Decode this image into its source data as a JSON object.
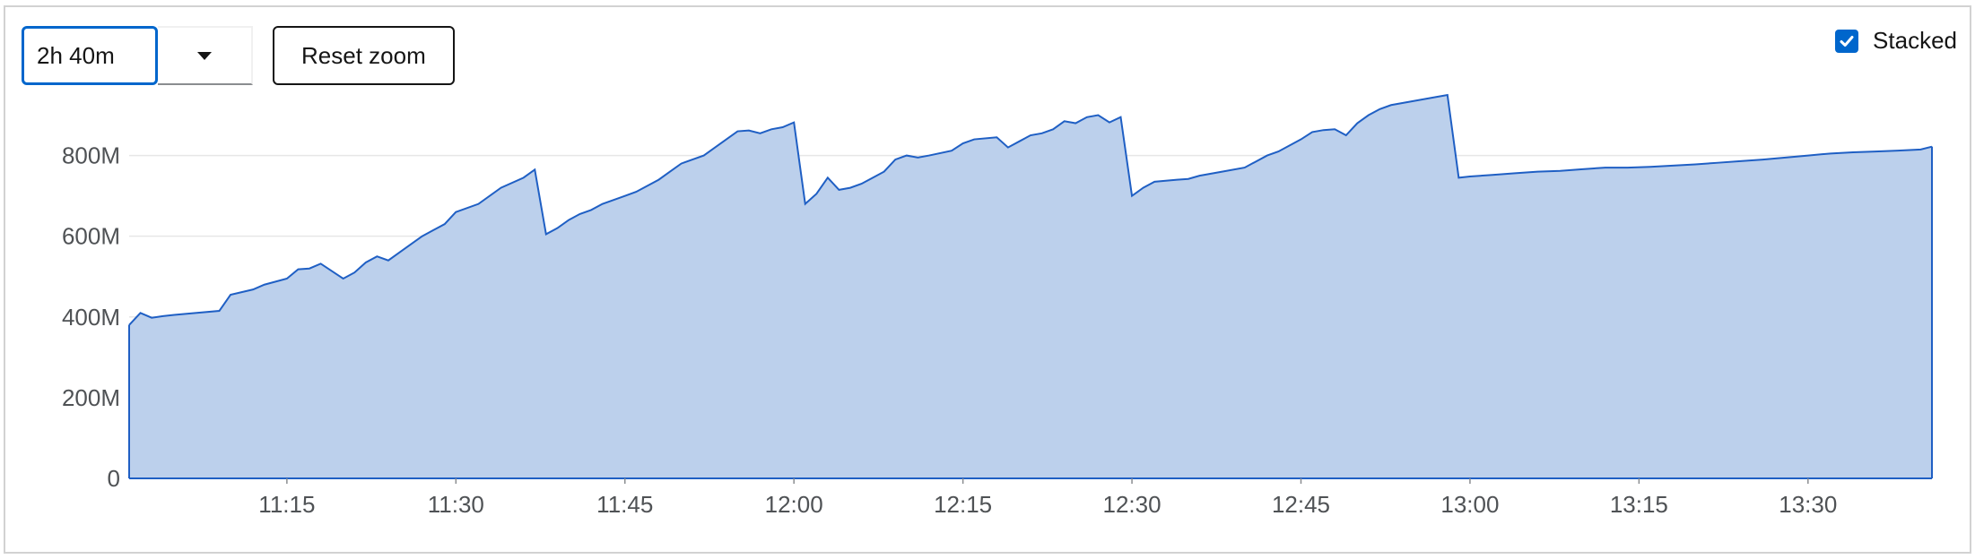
{
  "controls": {
    "duration_value": "2h 40m",
    "reset_label": "Reset zoom",
    "stacked_label": "Stacked",
    "stacked_checked": true,
    "dropdown_icon": "caret-down-icon",
    "check_icon": "checkmark-icon"
  },
  "colors": {
    "area_fill": "#bcd0ec",
    "area_stroke": "#1f5fc4",
    "accent": "#0066cc",
    "grid": "#e6e6e6",
    "axis_text": "#4f5255"
  },
  "chart_data": {
    "type": "area",
    "stacked": true,
    "title": "",
    "xlabel": "",
    "ylabel": "",
    "ylim": [
      0,
      950000000
    ],
    "xlim": [
      "11:01",
      "13:41"
    ],
    "grid": true,
    "yticks": [
      {
        "value": 0,
        "label": "0"
      },
      {
        "value": 200000000,
        "label": "200M"
      },
      {
        "value": 400000000,
        "label": "400M"
      },
      {
        "value": 600000000,
        "label": "600M"
      },
      {
        "value": 800000000,
        "label": "800M"
      }
    ],
    "xticks": [
      "11:15",
      "11:30",
      "11:45",
      "12:00",
      "12:15",
      "12:30",
      "12:45",
      "13:00",
      "13:15",
      "13:30"
    ],
    "series": [
      {
        "x": [
          "11:01",
          "11:02",
          "11:03",
          "11:04",
          "11:05",
          "11:07",
          "11:09",
          "11:10",
          "11:12",
          "11:13",
          "11:15",
          "11:16",
          "11:17",
          "11:18",
          "11:20",
          "11:21",
          "11:22",
          "11:23",
          "11:24",
          "11:25",
          "11:26",
          "11:27",
          "11:28",
          "11:29",
          "11:30",
          "11:32",
          "11:34",
          "11:36",
          "11:37",
          "11:38",
          "11:39",
          "11:40",
          "11:41",
          "11:42",
          "11:43",
          "11:44",
          "11:45",
          "11:46",
          "11:48",
          "11:49",
          "11:50",
          "11:51",
          "11:52",
          "11:53",
          "11:54",
          "11:55",
          "11:56",
          "11:57",
          "11:58",
          "11:59",
          "12:00",
          "12:01",
          "12:02",
          "12:03",
          "12:04",
          "12:05",
          "12:06",
          "12:07",
          "12:08",
          "12:09",
          "12:10",
          "12:11",
          "12:12",
          "12:14",
          "12:15",
          "12:16",
          "12:18",
          "12:19",
          "12:20",
          "12:21",
          "12:22",
          "12:23",
          "12:24",
          "12:25",
          "12:26",
          "12:27",
          "12:28",
          "12:29",
          "12:30",
          "12:31",
          "12:32",
          "12:34",
          "12:35",
          "12:36",
          "12:37",
          "12:38",
          "12:40",
          "12:41",
          "12:42",
          "12:43",
          "12:45",
          "12:46",
          "12:47",
          "12:48",
          "12:49",
          "12:50",
          "12:51",
          "12:52",
          "12:53",
          "12:54",
          "12:55",
          "12:56",
          "12:57",
          "12:58",
          "12:59",
          "13:00",
          "13:02",
          "13:04",
          "13:06",
          "13:08",
          "13:10",
          "13:12",
          "13:14",
          "13:16",
          "13:18",
          "13:20",
          "13:22",
          "13:24",
          "13:26",
          "13:28",
          "13:30",
          "13:32",
          "13:34",
          "13:36",
          "13:38",
          "13:40",
          "13:41"
        ],
        "values": [
          380000000,
          410000000,
          398000000,
          402000000,
          405000000,
          410000000,
          415000000,
          455000000,
          468000000,
          480000000,
          495000000,
          518000000,
          520000000,
          532000000,
          495000000,
          510000000,
          535000000,
          550000000,
          540000000,
          560000000,
          580000000,
          600000000,
          615000000,
          630000000,
          660000000,
          680000000,
          720000000,
          745000000,
          765000000,
          605000000,
          620000000,
          640000000,
          655000000,
          665000000,
          680000000,
          690000000,
          700000000,
          710000000,
          740000000,
          760000000,
          780000000,
          790000000,
          800000000,
          820000000,
          840000000,
          860000000,
          862000000,
          855000000,
          865000000,
          870000000,
          882000000,
          680000000,
          705000000,
          745000000,
          715000000,
          720000000,
          730000000,
          745000000,
          760000000,
          790000000,
          800000000,
          795000000,
          800000000,
          812000000,
          830000000,
          840000000,
          845000000,
          820000000,
          835000000,
          850000000,
          855000000,
          865000000,
          885000000,
          880000000,
          895000000,
          900000000,
          882000000,
          895000000,
          700000000,
          720000000,
          735000000,
          740000000,
          742000000,
          750000000,
          755000000,
          760000000,
          770000000,
          785000000,
          800000000,
          810000000,
          840000000,
          858000000,
          863000000,
          865000000,
          850000000,
          880000000,
          900000000,
          915000000,
          925000000,
          930000000,
          935000000,
          940000000,
          945000000,
          950000000,
          745000000,
          748000000,
          752000000,
          756000000,
          760000000,
          762000000,
          766000000,
          770000000,
          770000000,
          772000000,
          775000000,
          778000000,
          782000000,
          786000000,
          790000000,
          795000000,
          800000000,
          805000000,
          808000000,
          810000000,
          812000000,
          815000000,
          822000000
        ]
      }
    ]
  }
}
